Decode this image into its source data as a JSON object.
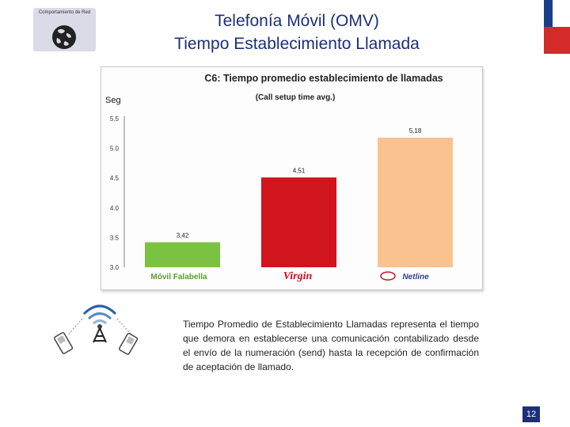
{
  "header": {
    "logo_text": "Comportamiento de Red",
    "title_line1": "Telefonía Móvil (OMV)",
    "title_line2": "Tiempo Establecimiento Llamada"
  },
  "colors": {
    "title": "#1c2f78",
    "flag_blue": "#1c3d8c",
    "flag_red": "#d42a2a",
    "bar_movil": "#7cc242",
    "bar_virgin": "#d0151c",
    "bar_netline": "#f9c28f"
  },
  "chart_data": {
    "type": "bar",
    "title": "C6: Tiempo promedio establecimiento de llamadas",
    "subtitle": "(Call setup time avg.)",
    "ylabel": "Seg",
    "xlabel": "",
    "ylim": [
      3.0,
      5.5
    ],
    "yticks": [
      "5.5",
      "5.0",
      "4.5",
      "4.0",
      "3.5",
      "3.0"
    ],
    "categories": [
      "Móvil Falabella",
      "Virgin",
      "Netline"
    ],
    "values": [
      3.42,
      4.51,
      5.18
    ],
    "value_labels": [
      "3,42",
      "4,51",
      "5,18"
    ],
    "grid": false
  },
  "description": "Tiempo Promedio de Establecimiento Llamadas representa el tiempo que demora en establecerse una comunicación contabilizado desde el envío de la numeración (send) hasta la recepción de confirmación de aceptación de llamado.",
  "icons": {
    "logo": "network-globe-icon",
    "antenna": "antenna-tower-icon",
    "phones": "mobile-phone-icon"
  },
  "footer": {
    "page_number": "12"
  }
}
